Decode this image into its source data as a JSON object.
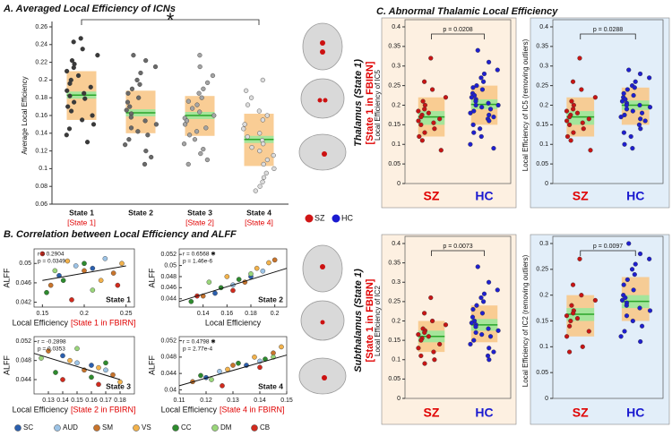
{
  "figure": {
    "panel_b_title": "B. Correlation between Local Efficiency and ALFF",
    "panel_c_title": "C. Abnormal Thalamic Local Efficiency",
    "networks": [
      {
        "name": "SC",
        "color": "#2b5fae"
      },
      {
        "name": "AUD",
        "color": "#9cc3e6"
      },
      {
        "name": "SM",
        "color": "#c8742c"
      },
      {
        "name": "VS",
        "color": "#f2b24c"
      },
      {
        "name": "CC",
        "color": "#2e8b2e"
      },
      {
        "name": "DM",
        "color": "#9ad67a"
      },
      {
        "name": "CB",
        "color": "#d22b1e"
      }
    ],
    "groups_legend": [
      {
        "name": "SZ",
        "color": "#d01515"
      },
      {
        "name": "HC",
        "color": "#1a1ad0"
      }
    ],
    "row_labels": [
      {
        "title": "Thalamus (State 1)",
        "note": "[State 1 in FBIRN]"
      },
      {
        "title": "Subthalamus (State 1)",
        "note": "[State 1 in FBIRN]"
      }
    ]
  },
  "chart_data": [
    {
      "type": "box_strip",
      "title": "A. Averaged Local Efficiency of ICNs",
      "ylabel": "Average Local Efficiency",
      "categories": [
        "State 1",
        "State 2",
        "State 3",
        "State 4"
      ],
      "category_notes": [
        "[State 1]",
        null,
        "[State 2]",
        "[State 4]"
      ],
      "ylim": [
        0.06,
        0.26
      ],
      "yticks": [
        0.06,
        0.08,
        0.1,
        0.12,
        0.14,
        0.16,
        0.18,
        0.2,
        0.22,
        0.24,
        0.26
      ],
      "significance": "*",
      "groups": [
        {
          "color": "#3a3a3a",
          "box": [
            0.155,
            0.21
          ],
          "band": [
            0.179,
            0.187
          ],
          "mean": 0.183,
          "values": [
            0.247,
            0.243,
            0.235,
            0.228,
            0.222,
            0.218,
            0.214,
            0.21,
            0.205,
            0.2,
            0.196,
            0.192,
            0.188,
            0.185,
            0.182,
            0.179,
            0.175,
            0.17,
            0.165,
            0.16,
            0.155,
            0.15,
            0.145,
            0.138,
            0.13
          ]
        },
        {
          "color": "#6a6a6a",
          "box": [
            0.14,
            0.188
          ],
          "band": [
            0.159,
            0.167
          ],
          "mean": 0.163,
          "values": [
            0.228,
            0.222,
            0.215,
            0.208,
            0.2,
            0.195,
            0.19,
            0.185,
            0.18,
            0.175,
            0.17,
            0.166,
            0.162,
            0.158,
            0.154,
            0.15,
            0.146,
            0.142,
            0.138,
            0.133,
            0.127,
            0.12,
            0.113,
            0.105
          ]
        },
        {
          "color": "#a4a4a4",
          "box": [
            0.137,
            0.182
          ],
          "band": [
            0.156,
            0.164
          ],
          "mean": 0.16,
          "values": [
            0.228,
            0.215,
            0.205,
            0.197,
            0.19,
            0.185,
            0.18,
            0.176,
            0.172,
            0.168,
            0.164,
            0.16,
            0.157,
            0.154,
            0.15,
            0.146,
            0.142,
            0.138,
            0.133,
            0.128,
            0.122,
            0.117,
            0.11,
            0.105
          ]
        },
        {
          "color": "#dcdcdc",
          "box": [
            0.103,
            0.162
          ],
          "band": [
            0.129,
            0.137
          ],
          "mean": 0.133,
          "values": [
            0.2,
            0.188,
            0.18,
            0.172,
            0.165,
            0.16,
            0.155,
            0.15,
            0.145,
            0.14,
            0.136,
            0.132,
            0.128,
            0.124,
            0.12,
            0.115,
            0.11,
            0.105,
            0.1,
            0.095,
            0.09,
            0.085,
            0.08,
            0.075
          ]
        }
      ]
    },
    {
      "type": "scatter",
      "xlabel": "Local Efficiency",
      "xlabel_note": "[State 1 in FBIRN]",
      "ylabel": "ALFF",
      "stats": [
        "r = 0.2904",
        "p = 0.0349"
      ],
      "label": "State 1",
      "xlim": [
        0.14,
        0.26
      ],
      "xticks": [
        0.15,
        0.2,
        0.25
      ],
      "ylim": [
        0.041,
        0.053
      ],
      "yticks": [
        0.042,
        0.046,
        0.05
      ],
      "fit_x": [
        0.15,
        0.25
      ],
      "fit_y": [
        0.0465,
        0.0495
      ],
      "series": [
        {
          "x": [
            0.17,
            0.21
          ],
          "values": [
            0.0475,
            0.049
          ]
        },
        {
          "x": [
            0.19,
            0.225
          ],
          "values": [
            0.0495,
            0.051
          ]
        },
        {
          "x": [
            0.16,
            0.2,
            0.235
          ],
          "values": [
            0.0455,
            0.0485,
            0.048
          ]
        },
        {
          "x": [
            0.18,
            0.22,
            0.245
          ],
          "values": [
            0.0505,
            0.0465,
            0.05
          ]
        },
        {
          "x": [
            0.155,
            0.175,
            0.2
          ],
          "values": [
            0.044,
            0.0465,
            0.05
          ]
        },
        {
          "x": [
            0.165,
            0.21
          ],
          "values": [
            0.0485,
            0.0445
          ]
        },
        {
          "x": [
            0.15,
            0.185,
            0.24
          ],
          "values": [
            0.052,
            0.0425,
            0.0455
          ]
        }
      ]
    },
    {
      "type": "scatter",
      "xlabel": "Local Efficiency",
      "ylabel": "ALFF",
      "stats": [
        "r = 0.6568 ✱",
        "p = 1.46e-6"
      ],
      "label": "State 2",
      "xlim": [
        0.12,
        0.21
      ],
      "xticks": [
        0.14,
        0.16,
        0.18,
        0.2
      ],
      "ylim": [
        0.0425,
        0.053
      ],
      "yticks": [
        0.044,
        0.046,
        0.048,
        0.05,
        0.052
      ],
      "fit_x": [
        0.12,
        0.21
      ],
      "fit_y": [
        0.0435,
        0.0495
      ],
      "series": [
        {
          "x": [
            0.15,
            0.18
          ],
          "values": [
            0.045,
            0.048
          ]
        },
        {
          "x": [
            0.165,
            0.19
          ],
          "values": [
            0.0465,
            0.049
          ]
        },
        {
          "x": [
            0.14,
            0.175,
            0.2
          ],
          "values": [
            0.0445,
            0.047,
            0.051
          ]
        },
        {
          "x": [
            0.16,
            0.185,
            0.195
          ],
          "values": [
            0.048,
            0.0495,
            0.0505
          ]
        },
        {
          "x": [
            0.13,
            0.155,
            0.17
          ],
          "values": [
            0.0435,
            0.046,
            0.0475
          ]
        },
        {
          "x": [
            0.145,
            0.18
          ],
          "values": [
            0.047,
            0.0485
          ]
        },
        {
          "x": [
            0.135,
            0.165
          ],
          "values": [
            0.0445,
            0.0455
          ]
        }
      ]
    },
    {
      "type": "scatter",
      "xlabel": "Local Efficiency",
      "xlabel_note": "[State 2 in FBIRN]",
      "ylabel": "ALFF",
      "stats": [
        "r = -0.2898",
        "p = 0.0353"
      ],
      "label": "State 3",
      "xlim": [
        0.12,
        0.19
      ],
      "xticks": [
        0.13,
        0.14,
        0.15,
        0.16,
        0.17,
        0.18
      ],
      "ylim": [
        0.041,
        0.053
      ],
      "yticks": [
        0.044,
        0.048,
        0.052
      ],
      "fit_x": [
        0.12,
        0.18
      ],
      "fit_y": [
        0.0495,
        0.044
      ],
      "series": [
        {
          "x": [
            0.14,
            0.16
          ],
          "values": [
            0.049,
            0.047
          ]
        },
        {
          "x": [
            0.15,
            0.17
          ],
          "values": [
            0.0475,
            0.046
          ]
        },
        {
          "x": [
            0.13,
            0.155,
            0.175
          ],
          "values": [
            0.05,
            0.046,
            0.045
          ]
        },
        {
          "x": [
            0.145,
            0.165,
            0.18
          ],
          "values": [
            0.048,
            0.0465,
            0.0435
          ]
        },
        {
          "x": [
            0.135,
            0.16,
            0.17
          ],
          "values": [
            0.0455,
            0.0445,
            0.0475
          ]
        },
        {
          "x": [
            0.125,
            0.15
          ],
          "values": [
            0.0485,
            0.0505
          ]
        },
        {
          "x": [
            0.14,
            0.165
          ],
          "values": [
            0.044,
            0.043
          ]
        }
      ]
    },
    {
      "type": "scatter",
      "xlabel": "Local Efficiency",
      "xlabel_note": "[State 4 in FBIRN]",
      "ylabel": "ALFF",
      "stats": [
        "r = 0.4798 ✱",
        "p = 2.77e-4"
      ],
      "label": "State 4",
      "xlim": [
        0.11,
        0.15
      ],
      "xticks": [
        0.11,
        0.12,
        0.13,
        0.14,
        0.15
      ],
      "ylim": [
        0.039,
        0.053
      ],
      "yticks": [
        0.04,
        0.044,
        0.048,
        0.052
      ],
      "fit_x": [
        0.11,
        0.15
      ],
      "fit_y": [
        0.041,
        0.0485
      ],
      "series": [
        {
          "x": [
            0.12,
            0.135
          ],
          "values": [
            0.043,
            0.046
          ]
        },
        {
          "x": [
            0.125,
            0.14
          ],
          "values": [
            0.0445,
            0.047
          ]
        },
        {
          "x": [
            0.115,
            0.13,
            0.145
          ],
          "values": [
            0.042,
            0.046,
            0.049
          ]
        },
        {
          "x": [
            0.128,
            0.138,
            0.148
          ],
          "values": [
            0.045,
            0.048,
            0.0505
          ]
        },
        {
          "x": [
            0.118,
            0.132,
            0.142
          ],
          "values": [
            0.0435,
            0.0465,
            0.0475
          ]
        },
        {
          "x": [
            0.122,
            0.145
          ],
          "values": [
            0.0425,
            0.048
          ]
        },
        {
          "x": [
            0.126,
            0.14
          ],
          "values": [
            0.041,
            0.0455
          ]
        }
      ]
    },
    {
      "type": "box_strip",
      "ylabel": "Local Efficiency of IC5",
      "categories": [
        "SZ",
        "HC"
      ],
      "category_colors": [
        "#e00000",
        "#1a1ad0"
      ],
      "background": "#fdf0e1",
      "ylim": [
        0,
        0.4
      ],
      "yticks": [
        0,
        0.05,
        0.1,
        0.15,
        0.2,
        0.25,
        0.3,
        0.35,
        0.4
      ],
      "significance": "p = 0.0208",
      "groups": [
        {
          "color": "#c81414",
          "box": [
            0.12,
            0.22
          ],
          "band": [
            0.15,
            0.185
          ],
          "mean": 0.17,
          "values": [
            0.32,
            0.26,
            0.24,
            0.22,
            0.21,
            0.2,
            0.19,
            0.185,
            0.18,
            0.175,
            0.17,
            0.165,
            0.16,
            0.155,
            0.15,
            0.14,
            0.13,
            0.12,
            0.11,
            0.085
          ]
        },
        {
          "color": "#1f1fd0",
          "box": [
            0.15,
            0.25
          ],
          "band": [
            0.19,
            0.215
          ],
          "mean": 0.202,
          "values": [
            0.34,
            0.31,
            0.29,
            0.28,
            0.27,
            0.26,
            0.25,
            0.245,
            0.24,
            0.23,
            0.225,
            0.22,
            0.215,
            0.21,
            0.205,
            0.2,
            0.2,
            0.195,
            0.19,
            0.185,
            0.18,
            0.175,
            0.17,
            0.165,
            0.16,
            0.15,
            0.14,
            0.13,
            0.12,
            0.1,
            0.09
          ]
        }
      ]
    },
    {
      "type": "box_strip",
      "ylabel": "Local Efficiency of IC5 (removing outliers)",
      "categories": [
        "SZ",
        "HC"
      ],
      "category_colors": [
        "#e00000",
        "#1a1ad0"
      ],
      "background": "#e2eef9",
      "ylim": [
        0,
        0.4
      ],
      "yticks": [
        0,
        0.05,
        0.1,
        0.15,
        0.2,
        0.25,
        0.3,
        0.35,
        0.4
      ],
      "significance": "p = 0.0288",
      "groups": [
        {
          "color": "#c81414",
          "box": [
            0.12,
            0.22
          ],
          "band": [
            0.15,
            0.185
          ],
          "mean": 0.17,
          "values": [
            0.32,
            0.26,
            0.24,
            0.22,
            0.21,
            0.2,
            0.19,
            0.185,
            0.18,
            0.175,
            0.17,
            0.165,
            0.16,
            0.155,
            0.15,
            0.14,
            0.13,
            0.12,
            0.11,
            0.085
          ]
        },
        {
          "color": "#1f1fd0",
          "box": [
            0.15,
            0.245
          ],
          "band": [
            0.188,
            0.212
          ],
          "mean": 0.2,
          "values": [
            0.29,
            0.28,
            0.27,
            0.26,
            0.25,
            0.245,
            0.24,
            0.23,
            0.225,
            0.22,
            0.215,
            0.21,
            0.205,
            0.2,
            0.2,
            0.195,
            0.19,
            0.185,
            0.18,
            0.175,
            0.17,
            0.165,
            0.16,
            0.15,
            0.14,
            0.13,
            0.12,
            0.1,
            0.09
          ]
        }
      ]
    },
    {
      "type": "box_strip",
      "ylabel": "Local Efficiency of IC2",
      "categories": [
        "SZ",
        "HC"
      ],
      "category_colors": [
        "#e00000",
        "#1a1ad0"
      ],
      "background": "#fdf0e1",
      "ylim": [
        0,
        0.4
      ],
      "yticks": [
        0,
        0.05,
        0.1,
        0.15,
        0.2,
        0.25,
        0.3,
        0.35,
        0.4
      ],
      "significance": "p = 0.0073",
      "groups": [
        {
          "color": "#c81414",
          "box": [
            0.12,
            0.2
          ],
          "band": [
            0.145,
            0.175
          ],
          "mean": 0.16,
          "values": [
            0.26,
            0.22,
            0.2,
            0.19,
            0.18,
            0.175,
            0.17,
            0.165,
            0.16,
            0.155,
            0.15,
            0.14,
            0.13,
            0.12,
            0.11,
            0.1,
            0.09
          ]
        },
        {
          "color": "#1f1fd0",
          "box": [
            0.145,
            0.24
          ],
          "band": [
            0.175,
            0.205
          ],
          "mean": 0.19,
          "values": [
            0.34,
            0.3,
            0.28,
            0.27,
            0.26,
            0.25,
            0.24,
            0.23,
            0.22,
            0.21,
            0.2,
            0.195,
            0.19,
            0.185,
            0.18,
            0.175,
            0.17,
            0.165,
            0.16,
            0.15,
            0.14,
            0.13,
            0.12,
            0.11,
            0.1
          ]
        }
      ]
    },
    {
      "type": "box_strip",
      "ylabel": "Local Efficiency of IC2 (removing outliers)",
      "categories": [
        "SZ",
        "HC"
      ],
      "category_colors": [
        "#e00000",
        "#1a1ad0"
      ],
      "background": "#e2eef9",
      "ylim": [
        0,
        0.3
      ],
      "yticks": [
        0,
        0.05,
        0.1,
        0.15,
        0.2,
        0.25,
        0.3
      ],
      "significance": "p = 0.0097",
      "groups": [
        {
          "color": "#c81414",
          "box": [
            0.12,
            0.2
          ],
          "band": [
            0.15,
            0.175
          ],
          "mean": 0.163,
          "values": [
            0.27,
            0.22,
            0.2,
            0.19,
            0.18,
            0.17,
            0.165,
            0.16,
            0.155,
            0.15,
            0.14,
            0.13,
            0.12,
            0.1,
            0.09
          ]
        },
        {
          "color": "#1f1fd0",
          "box": [
            0.15,
            0.235
          ],
          "band": [
            0.175,
            0.2
          ],
          "mean": 0.188,
          "values": [
            0.3,
            0.28,
            0.27,
            0.26,
            0.25,
            0.24,
            0.23,
            0.22,
            0.21,
            0.2,
            0.195,
            0.19,
            0.185,
            0.18,
            0.175,
            0.17,
            0.16,
            0.15,
            0.14,
            0.13,
            0.12,
            0.11
          ]
        }
      ]
    }
  ]
}
